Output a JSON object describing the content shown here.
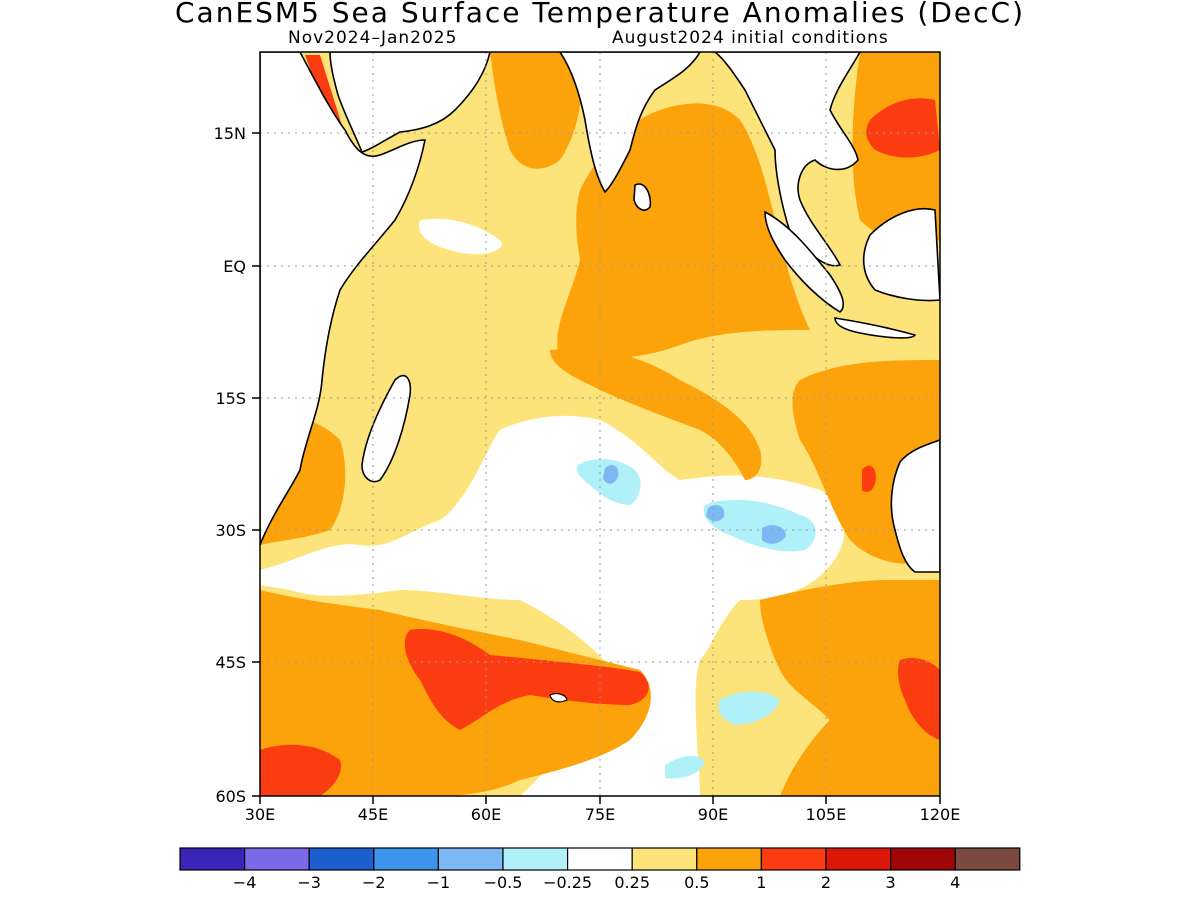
{
  "title": "CanESM5 Sea Surface Temperature Anomalies (DecC)",
  "period": "Nov2024–Jan2025",
  "initial_conditions": "August2024 initial conditions",
  "lat_ticks": [
    "15N",
    "EQ",
    "15S",
    "30S",
    "45S",
    "60S"
  ],
  "lon_ticks": [
    "30E",
    "45E",
    "60E",
    "75E",
    "90E",
    "105E",
    "120E"
  ],
  "colorbar": {
    "labels": [
      "−4",
      "−3",
      "−2",
      "−1",
      "−0.5",
      "−0.25",
      "0.25",
      "0.5",
      "1",
      "2",
      "3",
      "4"
    ],
    "colors": [
      "#3a25b8",
      "#7b6ae8",
      "#1c5fd0",
      "#3d94ec",
      "#7cb8f4",
      "#b0f0f8",
      "#ffffff",
      "#fde47a",
      "#fca20a",
      "#fb3c10",
      "#dc1808",
      "#a00808",
      "#7a4a40"
    ]
  },
  "colors": {
    "light_orange": "#fde47a",
    "orange": "#fca20a",
    "red_orange": "#fb3c10",
    "light_cyan": "#b0f0f8",
    "light_blue": "#7cb8f4"
  }
}
